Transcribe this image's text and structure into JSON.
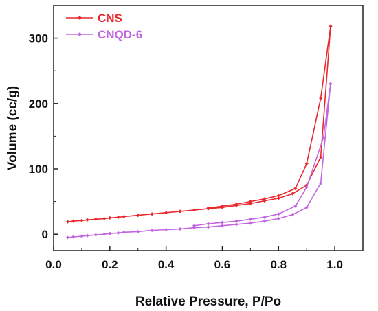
{
  "chart_data": {
    "type": "line",
    "title": "",
    "xlabel": "Relative Pressure, P/Po",
    "ylabel": "Volume (cc/g)",
    "xlim": [
      0.0,
      1.1
    ],
    "ylim": [
      -25,
      350
    ],
    "xticks": [
      0.0,
      0.2,
      0.4,
      0.6,
      0.8,
      1.0
    ],
    "xtick_labels": [
      "0.0",
      "0.2",
      "0.4",
      "0.6",
      "0.8",
      "1.0"
    ],
    "yticks": [
      0,
      100,
      200,
      300
    ],
    "ytick_labels": [
      "0",
      "100",
      "200",
      "300"
    ],
    "grid": false,
    "legend": "top-left",
    "series": [
      {
        "name": "CNS",
        "color": "#e8282c",
        "branches": [
          {
            "x": [
              0.05,
              0.07,
              0.1,
              0.12,
              0.15,
              0.18,
              0.2,
              0.23,
              0.25,
              0.3,
              0.35,
              0.4,
              0.45,
              0.5,
              0.55,
              0.6,
              0.65,
              0.7,
              0.75,
              0.8,
              0.85,
              0.9,
              0.95,
              0.985
            ],
            "y": [
              19,
              20,
              21,
              22,
              23,
              24,
              25,
              26,
              27,
              29,
              31,
              33,
              35,
              37,
              39,
              41,
              44,
              47,
              51,
              55,
              62,
              75,
              118,
              318
            ]
          },
          {
            "x": [
              0.985,
              0.95,
              0.9,
              0.86,
              0.8,
              0.75,
              0.7,
              0.65,
              0.6,
              0.55
            ],
            "y": [
              318,
              208,
              108,
              70,
              59,
              54,
              50,
              46,
              43,
              40
            ]
          }
        ]
      },
      {
        "name": "CNQD-6",
        "color": "#c266e0",
        "branches": [
          {
            "x": [
              0.05,
              0.07,
              0.1,
              0.12,
              0.15,
              0.18,
              0.2,
              0.23,
              0.25,
              0.3,
              0.35,
              0.4,
              0.45,
              0.5,
              0.55,
              0.6,
              0.65,
              0.7,
              0.75,
              0.8,
              0.85,
              0.9,
              0.95,
              0.985
            ],
            "y": [
              -5,
              -4,
              -3,
              -2,
              -1,
              0,
              1,
              2,
              3,
              4,
              6,
              7,
              8,
              10,
              11,
              13,
              15,
              17,
              20,
              24,
              30,
              41,
              78,
              230
            ]
          },
          {
            "x": [
              0.985,
              0.96,
              0.9,
              0.86,
              0.8,
              0.75,
              0.7,
              0.65,
              0.6,
              0.55,
              0.5
            ],
            "y": [
              230,
              148,
              72,
              43,
              31,
              26,
              23,
              20,
              18,
              16,
              13
            ]
          }
        ]
      }
    ]
  }
}
